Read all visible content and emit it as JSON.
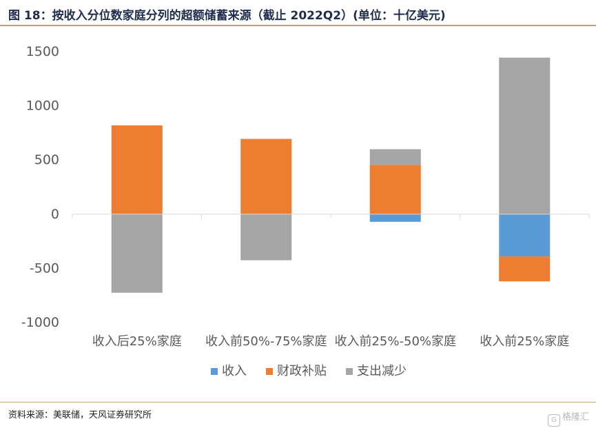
{
  "header": {
    "title": "图 18：按收入分位数家庭分列的超额储蓄来源（截止 2022Q2）(单位：十亿美元)"
  },
  "footer": {
    "source": "资料来源：美联储，天风证券研究所"
  },
  "watermark": {
    "text": "格隆汇",
    "icon": "G"
  },
  "colors": {
    "income": "#5b9bd5",
    "fiscal": "#ed7d31",
    "spending": "#a5a5a5",
    "title": "#1f2d4d",
    "rule": "#c9a45a"
  },
  "chart_data": {
    "type": "bar",
    "stacked": true,
    "categories": [
      "收入后25%家庭",
      "收入前50%-75%家庭",
      "收入前25%-50%家庭",
      "收入前25%家庭"
    ],
    "series": [
      {
        "name": "收入",
        "values": [
          0,
          0,
          -70,
          -390
        ]
      },
      {
        "name": "财政补贴",
        "values": [
          820,
          695,
          455,
          -230
        ]
      },
      {
        "name": "支出减少",
        "values": [
          -725,
          -425,
          145,
          1445
        ]
      }
    ],
    "ylim": [
      -1000,
      1500
    ],
    "yticks": [
      -1000,
      -500,
      0,
      500,
      1000,
      1500
    ],
    "ytick_labels": [
      "-1000",
      "-500",
      "0",
      "500",
      "1000",
      "1500"
    ],
    "grid": false,
    "legend": "bottom",
    "title": "",
    "xlabel": "",
    "ylabel": ""
  }
}
